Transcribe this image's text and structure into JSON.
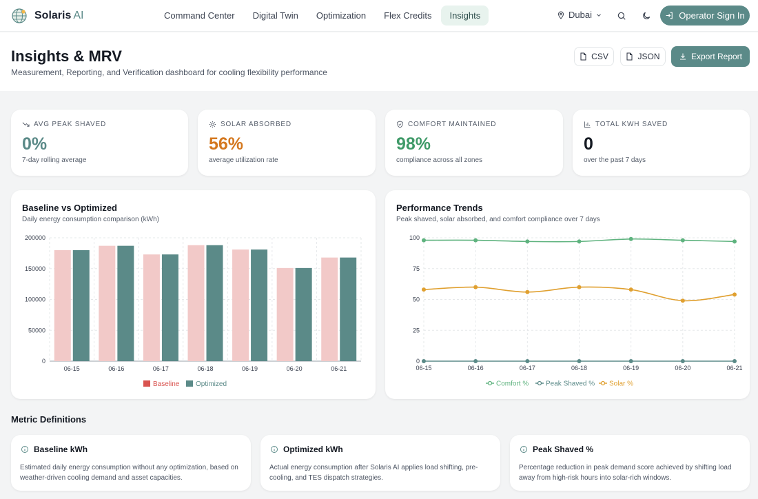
{
  "nav": {
    "brand": "Solaris",
    "brand_suffix": "AI",
    "links": [
      "Command Center",
      "Digital Twin",
      "Optimization",
      "Flex Credits",
      "Insights"
    ],
    "active": "Insights",
    "city": "Dubai",
    "signin_label": "Operator Sign In"
  },
  "header": {
    "title": "Insights & MRV",
    "subtitle": "Measurement, Reporting, and Verification dashboard for cooling flexibility performance",
    "csv_label": "CSV",
    "json_label": "JSON",
    "export_label": "Export Report"
  },
  "stats": [
    {
      "label": "AVG PEAK SHAVED",
      "value": "0%",
      "sub": "7-day rolling average",
      "color": "#5b8a88",
      "icon": "trending-down-icon"
    },
    {
      "label": "SOLAR ABSORBED",
      "value": "56%",
      "sub": "average utilization rate",
      "color": "#d4781f",
      "icon": "sun-icon"
    },
    {
      "label": "COMFORT MAINTAINED",
      "value": "98%",
      "sub": "compliance across all zones",
      "color": "#3f9a68",
      "icon": "shield-icon"
    },
    {
      "label": "TOTAL KWH SAVED",
      "value": "0",
      "sub": "over the past 7 days",
      "color": "#141922",
      "icon": "bar-chart-icon"
    }
  ],
  "baseline_chart": {
    "title": "Baseline vs Optimized",
    "subtitle": "Daily energy consumption comparison (kWh)"
  },
  "trend_chart": {
    "title": "Performance Trends",
    "subtitle": "Peak shaved, solar absorbed, and comfort compliance over 7 days"
  },
  "chart_data": [
    {
      "type": "bar",
      "categories": [
        "06-15",
        "06-16",
        "06-17",
        "06-18",
        "06-19",
        "06-20",
        "06-21"
      ],
      "ylim": [
        0,
        200000
      ],
      "yticks": [
        "200000",
        "150000",
        "100000",
        "50000",
        "0"
      ],
      "grid": true,
      "legend_position": "bottom-center",
      "series": [
        {
          "name": "Baseline",
          "values": [
            180000,
            187000,
            173000,
            188000,
            181000,
            151000,
            168000
          ],
          "color": "#f2c9c8",
          "legend_color": "#d9534f"
        },
        {
          "name": "Optimized",
          "values": [
            180000,
            187000,
            173000,
            188000,
            181000,
            151000,
            168000
          ],
          "color": "#5b8a88",
          "legend_color": "#5b8a88"
        }
      ]
    },
    {
      "type": "line",
      "categories": [
        "06-15",
        "06-16",
        "06-17",
        "06-18",
        "06-19",
        "06-20",
        "06-21"
      ],
      "ylim": [
        0,
        100
      ],
      "yticks": [
        "100",
        "75",
        "50",
        "25",
        "0"
      ],
      "grid": true,
      "legend_position": "bottom-center",
      "series": [
        {
          "name": "Comfort %",
          "values": [
            98,
            98,
            97,
            97,
            99,
            98,
            97
          ],
          "color": "#5fb37f"
        },
        {
          "name": "Peak Shaved %",
          "values": [
            0,
            0,
            0,
            0,
            0,
            0,
            0
          ],
          "color": "#5b8a88"
        },
        {
          "name": "Solar %",
          "values": [
            58,
            60,
            56,
            60,
            58,
            49,
            54
          ],
          "color": "#e0a030"
        }
      ]
    }
  ],
  "definitions": {
    "heading": "Metric Definitions",
    "items": [
      {
        "title": "Baseline kWh",
        "text": "Estimated daily energy consumption without any optimization, based on weather-driven cooling demand and asset capacities."
      },
      {
        "title": "Optimized kWh",
        "text": "Actual energy consumption after Solaris AI applies load shifting, pre-cooling, and TES dispatch strategies."
      },
      {
        "title": "Peak Shaved %",
        "text": "Percentage reduction in peak demand score achieved by shifting load away from high-risk hours into solar-rich windows."
      }
    ]
  }
}
